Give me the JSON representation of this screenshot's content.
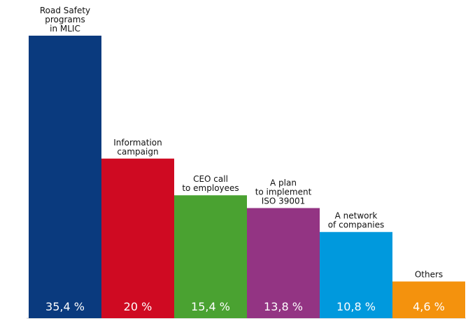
{
  "chart_data": {
    "type": "bar",
    "categories": [
      [
        "Road Safety",
        "programs",
        "in MLIC"
      ],
      [
        "Information",
        "campaign"
      ],
      [
        "CEO call",
        "to employees"
      ],
      [
        "A plan",
        "to implement",
        "ISO 39001"
      ],
      [
        "A network",
        "of companies"
      ],
      [
        "Others"
      ]
    ],
    "values": [
      35.4,
      20,
      15.4,
      13.8,
      10.8,
      4.6
    ],
    "value_labels": [
      "35,4 %",
      "20 %",
      "15,4 %",
      "13,8 %",
      "10,8 %",
      "4,6 %"
    ],
    "colors": [
      "#0a3a7e",
      "#cf0a22",
      "#4aa231",
      "#933483",
      "#0099dd",
      "#f4920d"
    ],
    "value_label_color": "#ffffff",
    "ylim": [
      0,
      35.4
    ],
    "grid": false,
    "legend": "none"
  }
}
